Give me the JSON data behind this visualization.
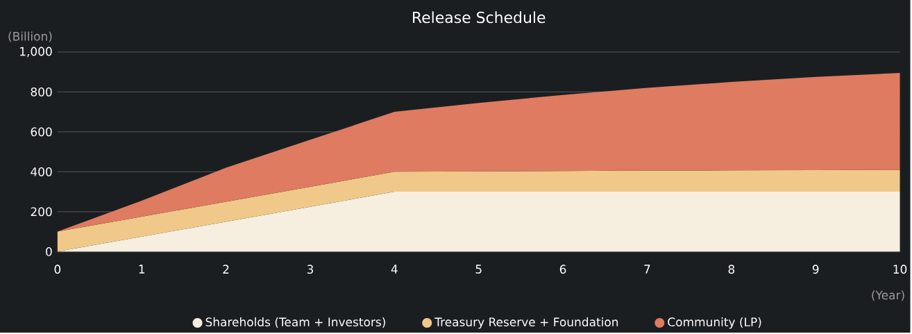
{
  "chart_data": {
    "type": "area",
    "title": "Release Schedule",
    "ylabel": "(Billion)",
    "xlabel": "(Year)",
    "stacked": true,
    "x": [
      0,
      1,
      2,
      3,
      4,
      5,
      6,
      7,
      8,
      9,
      10
    ],
    "series": [
      {
        "name": "Shareholds (Team + Investors)",
        "color": "#f6efdf",
        "values": [
          0,
          75,
          150,
          225,
          300,
          300,
          300,
          300,
          300,
          300,
          300
        ]
      },
      {
        "name": "Treasury Reserve + Foundation",
        "color": "#f0c98a",
        "values": [
          100,
          100,
          100,
          100,
          100,
          102,
          104,
          106,
          107,
          108,
          110
        ]
      },
      {
        "name": "Community (LP)",
        "color": "#de7b61",
        "values": [
          0,
          80,
          170,
          235,
          300,
          343,
          381,
          414,
          443,
          467,
          485
        ]
      }
    ],
    "xlim": [
      0,
      10
    ],
    "ylim": [
      0,
      1000
    ],
    "xticks": [
      0,
      1,
      2,
      3,
      4,
      5,
      6,
      7,
      8,
      9,
      10
    ],
    "yticks": [
      0,
      200,
      400,
      600,
      800,
      {
        "value": 1000,
        "label": "1,000"
      }
    ],
    "grid": "y",
    "legend": "bottom",
    "marker": "none"
  }
}
